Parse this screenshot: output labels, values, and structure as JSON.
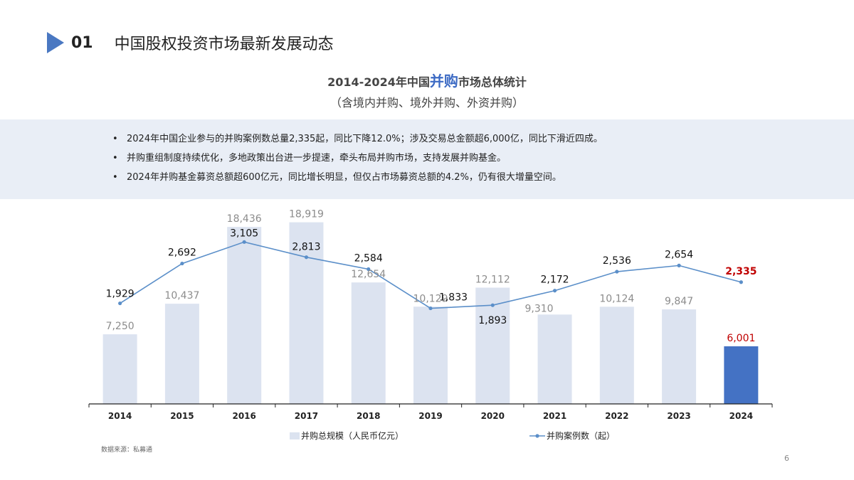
{
  "header": {
    "number": "01",
    "title": "中国股权投资市场最新发展动态"
  },
  "chart_title": {
    "prefix": "2014-2024年中国",
    "highlight": "并购",
    "suffix": "市场总体统计"
  },
  "chart_subtitle": "（含境内并购、境外并购、外资并购）",
  "bullets": [
    "2024年中国企业参与的并购案例数总量2,335起，同比下降12.0%；涉及交易总金额超6,000亿，同比下滑近四成。",
    "并购重组制度持续优化，多地政策出台进一步提速，牵头布局并购市场，支持发展并购基金。",
    "2024年并购基金募资总额超600亿元，同比增长明显，但仅占市场募资总额的4.2%，仍有很大增量空间。"
  ],
  "bullet_marker": "•",
  "chart_data": {
    "type": "bar+line",
    "categories": [
      "2014",
      "2015",
      "2016",
      "2017",
      "2018",
      "2019",
      "2020",
      "2021",
      "2022",
      "2023",
      "2024"
    ],
    "series": [
      {
        "name": "并购总规模（人民币亿元）",
        "type": "bar",
        "values": [
          7250,
          10437,
          18436,
          18919,
          12654,
          10129,
          12112,
          9310,
          10124,
          9847,
          6001
        ],
        "labels": [
          "7,250",
          "10,437",
          "18,436",
          "18,919",
          "12,654",
          "10,129",
          "12,112",
          "9,310",
          "10,124",
          "9,847",
          "6,001"
        ],
        "color": "#dce3f0",
        "highlight_color": "#4472c4"
      },
      {
        "name": "并购案例数（起）",
        "type": "line",
        "values": [
          1929,
          2692,
          3105,
          2813,
          2584,
          1833,
          1893,
          2172,
          2536,
          2654,
          2335
        ],
        "labels": [
          "1,929",
          "2,692",
          "3,105",
          "2,813",
          "2,584",
          "1,833",
          "1,893",
          "2,172",
          "2,536",
          "2,654",
          "2,335"
        ],
        "color": "#5b8fc9",
        "highlight_label_color": "#c00000"
      }
    ],
    "bar_axis_range": [
      0,
      20000
    ],
    "line_axis_range": [
      0,
      3600
    ],
    "legend_position": "bottom",
    "grid": false
  },
  "source": "数据来源：私募通",
  "page_number": "6"
}
